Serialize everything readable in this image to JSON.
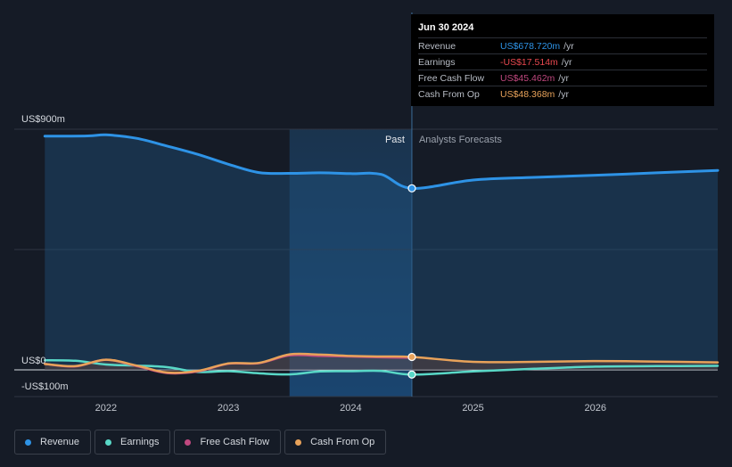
{
  "tooltip": {
    "date": "Jun 30 2024",
    "rows": [
      {
        "name": "Revenue",
        "value": "US$678.720m",
        "unit": "/yr",
        "color": "#2e93e6"
      },
      {
        "name": "Earnings",
        "value": "-US$17.514m",
        "unit": "/yr",
        "color": "#e8484f"
      },
      {
        "name": "Free Cash Flow",
        "value": "US$45.462m",
        "unit": "/yr",
        "color": "#c0487f"
      },
      {
        "name": "Cash From Op",
        "value": "US$48.368m",
        "unit": "/yr",
        "color": "#e8a25a"
      }
    ]
  },
  "legend": [
    {
      "label": "Revenue",
      "color": "#2e93e6"
    },
    {
      "label": "Earnings",
      "color": "#59d8c7"
    },
    {
      "label": "Free Cash Flow",
      "color": "#c0487f"
    },
    {
      "label": "Cash From Op",
      "color": "#e8a25a"
    }
  ],
  "chart_data": {
    "type": "line",
    "ylim": [
      -100,
      900
    ],
    "y_tick_labels": [
      "US$900m",
      "US$0",
      "-US$100m"
    ],
    "x_tick_labels": [
      "2022",
      "2023",
      "2024",
      "2025",
      "2026"
    ],
    "x_ticks": [
      2022.0,
      2023.0,
      2024.0,
      2025.0,
      2026.0
    ],
    "xlim": [
      2021.25,
      2027.0
    ],
    "past_label": "Past",
    "forecast_label": "Analysts Forecasts",
    "highlight_start": 2023.5,
    "divider_x": 2024.5,
    "series": [
      {
        "name": "Revenue",
        "color": "#2e93e6",
        "x": [
          2021.5,
          2021.85,
          2022.0,
          2022.25,
          2022.5,
          2022.75,
          2023.0,
          2023.25,
          2023.5,
          2023.75,
          2024.0,
          2024.25,
          2024.5,
          2025.0,
          2025.5,
          2026.0,
          2026.5,
          2027.0
        ],
        "y": [
          874,
          875,
          879,
          866,
          837,
          806,
          769,
          738,
          735,
          737,
          734,
          731,
          679,
          710,
          720,
          728,
          737,
          746
        ]
      },
      {
        "name": "Earnings",
        "color": "#59d8c7",
        "x": [
          2021.5,
          2021.75,
          2022.0,
          2022.25,
          2022.5,
          2022.75,
          2023.0,
          2023.25,
          2023.5,
          2023.75,
          2024.0,
          2024.25,
          2024.5,
          2025.0,
          2025.5,
          2026.0,
          2026.5,
          2027.0
        ],
        "y": [
          36,
          34,
          20,
          16,
          10,
          -8,
          -5,
          -13,
          -17,
          -6,
          -5,
          -4,
          -17.5,
          -6,
          4,
          12,
          14,
          15
        ]
      },
      {
        "name": "Free Cash Flow",
        "color": "#c0487f",
        "x": [
          2021.5,
          2021.75,
          2022.0,
          2022.25,
          2022.5,
          2022.75,
          2023.0,
          2023.25,
          2023.5,
          2023.75,
          2024.0,
          2024.25,
          2024.5
        ],
        "y": [
          22,
          13,
          38,
          14,
          -12,
          -6,
          23,
          25,
          54,
          52,
          50,
          47,
          45.5
        ]
      },
      {
        "name": "Cash From Op",
        "color": "#e8a25a",
        "x": [
          2021.5,
          2021.75,
          2022.0,
          2022.25,
          2022.5,
          2022.75,
          2023.0,
          2023.25,
          2023.5,
          2023.75,
          2024.0,
          2024.25,
          2024.5,
          2025.0,
          2025.5,
          2026.0,
          2026.5,
          2027.0
        ],
        "y": [
          22,
          14,
          38,
          16,
          -10,
          -4,
          24,
          26,
          58,
          57,
          52,
          50,
          48.4,
          30,
          30,
          33,
          31,
          28
        ]
      }
    ]
  }
}
